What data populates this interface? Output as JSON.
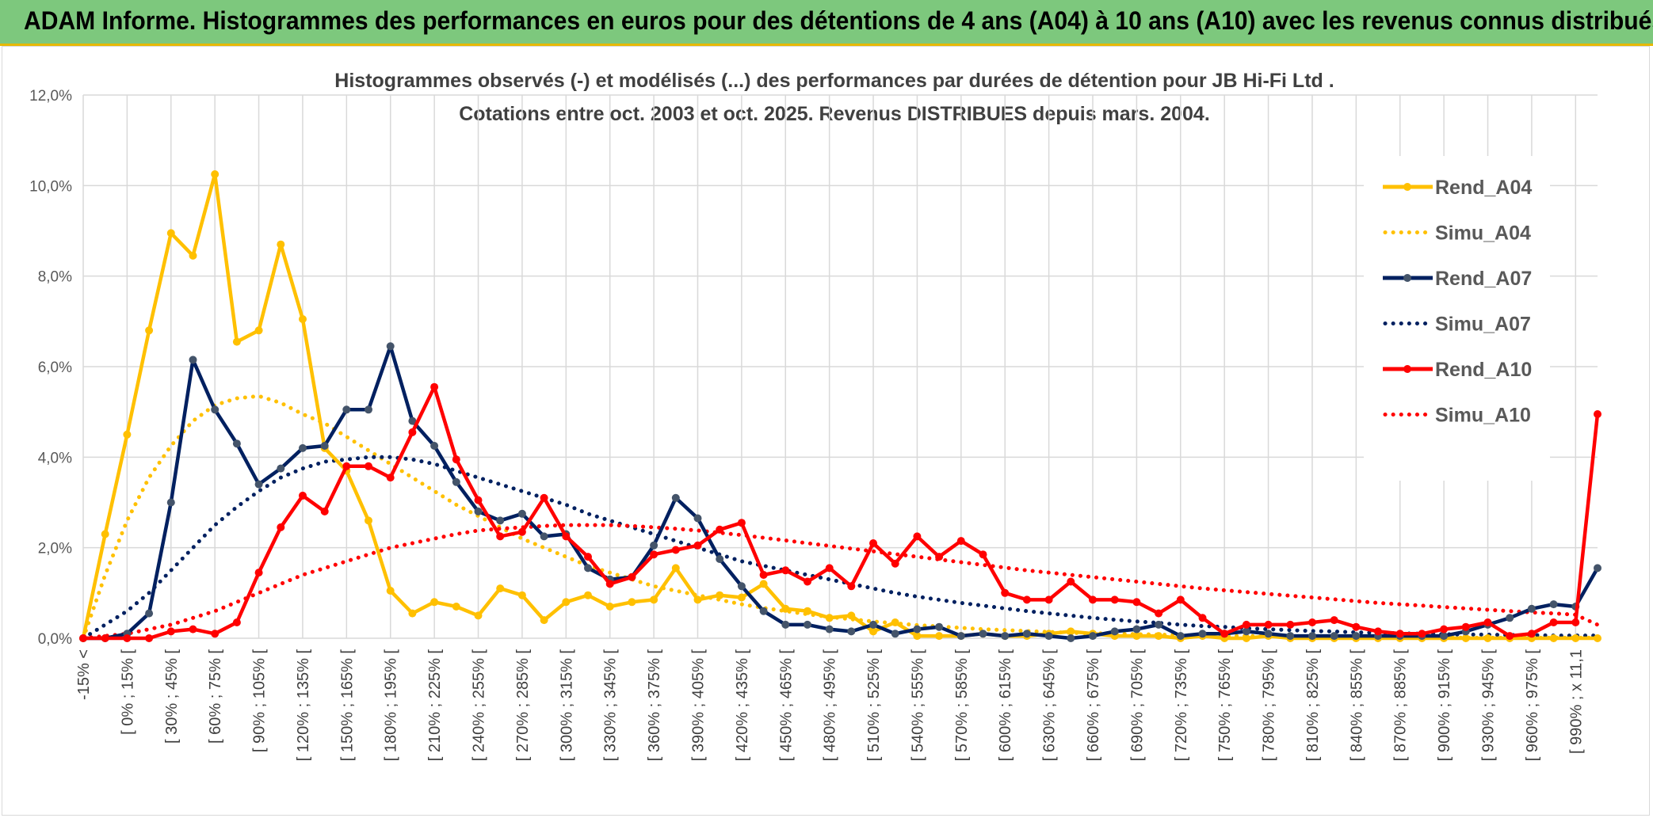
{
  "banner": {
    "title": "ADAM Informe. Histogrammes des performances en euros pour des détentions de 4 ans (A04) à 10 ans (A10) avec les revenus connus distribués"
  },
  "chart_data": {
    "type": "line",
    "title": "Histogrammes observés (-) et modélisés (...) des performances par durées de détention pour JB Hi-Fi Ltd .",
    "subtitle": "Cotations entre oct. 2003 et oct. 2025. Revenus DISTRIBUES depuis mars. 2004.",
    "xlabel": "",
    "ylabel": "",
    "ylim": [
      0,
      12
    ],
    "yticks": [
      "0,0%",
      "2,0%",
      "4,0%",
      "6,0%",
      "8,0%",
      "10,0%",
      "12,0%"
    ],
    "ytick_values": [
      0,
      2,
      4,
      6,
      8,
      10,
      12
    ],
    "grid": true,
    "legend_position": "right",
    "x_count": 70,
    "xtick_labels": [
      "-15% <",
      "[ 0% ; 15% [",
      "[ 30% ; 45% [",
      "[ 60% ; 75% [",
      "[ 90% ; 105% [",
      "[ 120% ; 135% [",
      "[ 150% ; 165% [",
      "[ 180% ; 195% [",
      "[ 210% ; 225% [",
      "[ 240% ; 255% [",
      "[ 270% ; 285% [",
      "[ 300% ; 315% [",
      "[ 330% ; 345% [",
      "[ 360% ; 375% [",
      "[ 390% ; 405% [",
      "[ 420% ; 435% [",
      "[ 450% ; 465% [",
      "[ 480% ; 495% [",
      "[ 510% ; 525% [",
      "[ 540% ; 555% [",
      "[ 570% ; 585% [",
      "[ 600% ; 615% [",
      "[ 630% ; 645% [",
      "[ 660% ; 675% [",
      "[ 690% ; 705% [",
      "[ 720% ; 735% [",
      "[ 750% ; 765% [",
      "[ 780% ; 795% [",
      "[ 810% ; 825% [",
      "[ 840% ; 855% [",
      "[ 870% ; 885% [",
      "[ 900% ; 915% [",
      "[ 930% ; 945% [",
      "[ 960% ; 975% [",
      "[ 990% ; x 11,1"
    ],
    "xtick_indices": [
      0,
      2,
      4,
      6,
      8,
      10,
      12,
      14,
      16,
      18,
      20,
      22,
      24,
      26,
      28,
      30,
      32,
      34,
      36,
      38,
      40,
      42,
      44,
      46,
      48,
      50,
      52,
      54,
      56,
      58,
      60,
      62,
      64,
      66,
      68
    ],
    "series": [
      {
        "name": "Rend_A04",
        "style": "solid",
        "marker": true,
        "color": "#ffc000",
        "values": [
          0.0,
          2.3,
          4.5,
          6.8,
          8.95,
          8.45,
          10.25,
          6.55,
          6.8,
          8.7,
          7.05,
          4.2,
          3.7,
          2.6,
          1.05,
          0.55,
          0.8,
          0.7,
          0.5,
          1.1,
          0.95,
          0.4,
          0.8,
          0.95,
          0.7,
          0.8,
          0.85,
          1.55,
          0.85,
          0.95,
          0.9,
          1.2,
          0.65,
          0.6,
          0.45,
          0.5,
          0.15,
          0.35,
          0.05,
          0.05,
          0.05,
          0.1,
          0.05,
          0.05,
          0.1,
          0.15,
          0.1,
          0.05,
          0.05,
          0.05,
          0.0,
          0.05,
          0.0,
          0.0,
          0.05,
          0.0,
          0.0,
          0.0,
          0.0,
          0.0,
          0.0,
          0.0,
          0.0,
          0.0,
          0.0,
          0.0,
          0.0,
          0.0,
          0.0,
          0.0
        ]
      },
      {
        "name": "Simu_A04",
        "style": "dotted",
        "marker": false,
        "color": "#ffc000",
        "values": [
          0.0,
          1.4,
          2.6,
          3.55,
          4.25,
          4.8,
          5.15,
          5.3,
          5.35,
          5.2,
          4.95,
          4.75,
          4.45,
          4.15,
          3.85,
          3.55,
          3.25,
          2.95,
          2.7,
          2.45,
          2.2,
          2.0,
          1.8,
          1.6,
          1.45,
          1.3,
          1.15,
          1.05,
          0.95,
          0.85,
          0.75,
          0.67,
          0.6,
          0.53,
          0.47,
          0.42,
          0.37,
          0.33,
          0.29,
          0.26,
          0.23,
          0.2,
          0.18,
          0.16,
          0.14,
          0.12,
          0.11,
          0.1,
          0.09,
          0.08,
          0.07,
          0.06,
          0.05,
          0.05,
          0.04,
          0.04,
          0.03,
          0.03,
          0.03,
          0.02,
          0.02,
          0.02,
          0.02,
          0.01,
          0.01,
          0.01,
          0.01,
          0.01,
          0.01,
          0.01
        ]
      },
      {
        "name": "Rend_A07",
        "style": "solid",
        "marker": true,
        "color": "#002060",
        "values": [
          0.0,
          0.0,
          0.1,
          0.55,
          3.0,
          6.15,
          5.05,
          4.3,
          3.4,
          3.75,
          4.2,
          4.25,
          5.05,
          5.05,
          6.45,
          4.8,
          4.25,
          3.45,
          2.8,
          2.6,
          2.75,
          2.25,
          2.3,
          1.55,
          1.3,
          1.35,
          2.05,
          3.1,
          2.65,
          1.75,
          1.15,
          0.6,
          0.3,
          0.3,
          0.2,
          0.15,
          0.3,
          0.1,
          0.2,
          0.25,
          0.05,
          0.1,
          0.05,
          0.1,
          0.05,
          0.0,
          0.05,
          0.15,
          0.2,
          0.3,
          0.05,
          0.1,
          0.1,
          0.15,
          0.1,
          0.05,
          0.05,
          0.05,
          0.05,
          0.05,
          0.05,
          0.05,
          0.05,
          0.15,
          0.3,
          0.45,
          0.65,
          0.75,
          0.7,
          1.55
        ]
      },
      {
        "name": "Simu_A07",
        "style": "dotted",
        "marker": false,
        "color": "#002060",
        "values": [
          0.0,
          0.3,
          0.6,
          1.0,
          1.5,
          2.0,
          2.5,
          2.9,
          3.25,
          3.55,
          3.75,
          3.9,
          3.95,
          4.0,
          4.0,
          3.95,
          3.85,
          3.7,
          3.55,
          3.4,
          3.25,
          3.1,
          2.95,
          2.75,
          2.6,
          2.45,
          2.3,
          2.15,
          2.0,
          1.85,
          1.7,
          1.6,
          1.5,
          1.4,
          1.3,
          1.2,
          1.1,
          1.0,
          0.92,
          0.85,
          0.78,
          0.72,
          0.66,
          0.6,
          0.55,
          0.5,
          0.45,
          0.41,
          0.37,
          0.34,
          0.3,
          0.27,
          0.25,
          0.22,
          0.2,
          0.18,
          0.16,
          0.15,
          0.13,
          0.12,
          0.11,
          0.1,
          0.09,
          0.08,
          0.08,
          0.07,
          0.07,
          0.06,
          0.06,
          0.06
        ]
      },
      {
        "name": "Rend_A10",
        "style": "solid",
        "marker": true,
        "color": "#ff0000",
        "values": [
          0.0,
          0.0,
          0.0,
          0.0,
          0.15,
          0.2,
          0.1,
          0.35,
          1.45,
          2.45,
          3.15,
          2.8,
          3.8,
          3.8,
          3.55,
          4.55,
          5.55,
          3.95,
          3.05,
          2.25,
          2.35,
          3.1,
          2.25,
          1.8,
          1.2,
          1.35,
          1.85,
          1.95,
          2.05,
          2.4,
          2.55,
          1.4,
          1.5,
          1.25,
          1.55,
          1.15,
          2.1,
          1.65,
          2.25,
          1.8,
          2.15,
          1.85,
          1.0,
          0.85,
          0.85,
          1.25,
          0.85,
          0.85,
          0.8,
          0.55,
          0.85,
          0.45,
          0.1,
          0.3,
          0.3,
          0.3,
          0.35,
          0.4,
          0.25,
          0.15,
          0.1,
          0.1,
          0.2,
          0.25,
          0.35,
          0.05,
          0.1,
          0.35,
          0.35,
          4.95
        ]
      },
      {
        "name": "Simu_A10",
        "style": "dotted",
        "marker": false,
        "color": "#ff0000",
        "values": [
          0.0,
          0.05,
          0.1,
          0.2,
          0.3,
          0.45,
          0.6,
          0.8,
          1.0,
          1.2,
          1.4,
          1.55,
          1.7,
          1.85,
          2.0,
          2.1,
          2.2,
          2.3,
          2.38,
          2.42,
          2.45,
          2.48,
          2.5,
          2.5,
          2.5,
          2.48,
          2.45,
          2.42,
          2.38,
          2.33,
          2.28,
          2.22,
          2.16,
          2.1,
          2.04,
          1.98,
          1.92,
          1.86,
          1.8,
          1.74,
          1.68,
          1.62,
          1.56,
          1.5,
          1.45,
          1.4,
          1.35,
          1.3,
          1.25,
          1.2,
          1.15,
          1.1,
          1.06,
          1.02,
          0.98,
          0.94,
          0.9,
          0.86,
          0.82,
          0.78,
          0.75,
          0.72,
          0.69,
          0.66,
          0.63,
          0.6,
          0.57,
          0.55,
          0.52,
          0.3
        ]
      }
    ]
  }
}
